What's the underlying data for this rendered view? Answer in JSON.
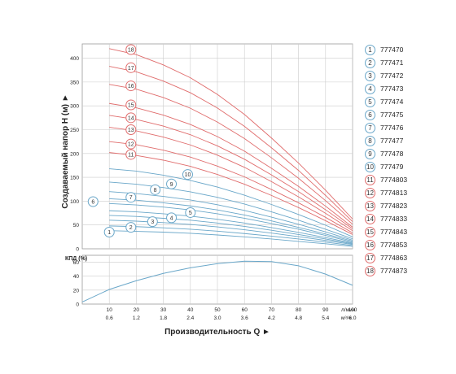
{
  "colors": {
    "blue_curve": "#6aa7c9",
    "red_curve": "#e06c6c",
    "grid": "#cccccc",
    "axis": "#222222"
  },
  "chart_data": [
    {
      "type": "line",
      "ylabel": "Создаваемый напор H (м) ►",
      "xlim": [
        0,
        100
      ],
      "ylim": [
        0,
        430
      ],
      "yticks": [
        0,
        50,
        100,
        150,
        200,
        250,
        300,
        350,
        400
      ],
      "xticks": [
        10,
        20,
        30,
        40,
        50,
        60,
        70,
        80,
        90,
        100
      ],
      "curve_x": [
        10,
        20,
        30,
        40,
        50,
        60,
        70,
        80,
        90,
        100
      ],
      "series": [
        {
          "name": "777470",
          "label": "1",
          "color": "blue",
          "values": [
            38,
            36.5,
            35,
            32.5,
            29,
            25,
            20.5,
            15.5,
            10.5,
            5
          ]
        },
        {
          "name": "777471",
          "label": "2",
          "color": "blue",
          "values": [
            48,
            46.5,
            44,
            41,
            37,
            32,
            26.5,
            20.5,
            14,
            7
          ]
        },
        {
          "name": "777472",
          "label": "3",
          "color": "blue",
          "values": [
            60,
            58,
            55,
            51,
            46,
            40,
            33,
            25.5,
            17.5,
            9
          ]
        },
        {
          "name": "777473",
          "label": "4",
          "color": "blue",
          "values": [
            70,
            68,
            64,
            60,
            54,
            47,
            39,
            30,
            20.5,
            10.5
          ]
        },
        {
          "name": "777474",
          "label": "5",
          "color": "blue",
          "values": [
            80,
            77.5,
            73.5,
            68.5,
            62,
            54,
            44.5,
            34.5,
            23.5,
            12
          ]
        },
        {
          "name": "777475",
          "label": "6",
          "color": "blue",
          "values": [
            95,
            92,
            87.5,
            81.5,
            73.5,
            64,
            53,
            41,
            28,
            14
          ]
        },
        {
          "name": "777476",
          "label": "7",
          "color": "blue",
          "values": [
            105,
            102,
            96.5,
            90,
            81.5,
            71,
            58.5,
            45,
            31,
            16
          ]
        },
        {
          "name": "777477",
          "label": "8",
          "color": "blue",
          "values": [
            120,
            116,
            110,
            102.5,
            92.5,
            80.5,
            66.5,
            51.5,
            35.5,
            18
          ]
        },
        {
          "name": "777478",
          "label": "9",
          "color": "blue",
          "values": [
            140,
            135.5,
            128.5,
            119.5,
            108,
            94,
            77.5,
            60,
            41,
            21
          ]
        },
        {
          "name": "777479",
          "label": "10",
          "color": "blue",
          "values": [
            168,
            163,
            154.5,
            143.5,
            129.5,
            112.5,
            93,
            72,
            49.5,
            25
          ]
        },
        {
          "name": "7774803",
          "label": "11",
          "color": "red",
          "values": [
            202,
            196,
            186,
            173,
            156,
            135.5,
            112,
            86.5,
            59,
            30
          ]
        },
        {
          "name": "7774813",
          "label": "12",
          "color": "red",
          "values": [
            225,
            218.5,
            207,
            192.5,
            173.5,
            151,
            124.5,
            96.5,
            66,
            33.5
          ]
        },
        {
          "name": "7774823",
          "label": "13",
          "color": "red",
          "values": [
            255,
            247.5,
            234.5,
            218,
            196.5,
            171,
            141,
            109,
            74.5,
            38
          ]
        },
        {
          "name": "7774833",
          "label": "14",
          "color": "red",
          "values": [
            280,
            271.5,
            257.5,
            239.5,
            216,
            188,
            155,
            120,
            82,
            42
          ]
        },
        {
          "name": "7774843",
          "label": "15",
          "color": "red",
          "values": [
            305,
            296,
            280.5,
            261,
            235.5,
            205,
            169,
            131,
            89.5,
            45.5
          ]
        },
        {
          "name": "7774853",
          "label": "16",
          "color": "red",
          "values": [
            345,
            335,
            317.5,
            295,
            266,
            231.5,
            191,
            148,
            101,
            51.5
          ]
        },
        {
          "name": "7774863",
          "label": "17",
          "color": "red",
          "values": [
            383,
            371.5,
            352,
            327.5,
            295.5,
            257,
            212,
            164.5,
            112,
            57
          ]
        },
        {
          "name": "7774873",
          "label": "18",
          "color": "red",
          "values": [
            420,
            407.5,
            386,
            359,
            324,
            282,
            232.5,
            180,
            123,
            62.5
          ]
        }
      ],
      "badges": [
        {
          "label": "1",
          "x": 10,
          "y": 35,
          "color": "blue"
        },
        {
          "label": "2",
          "x": 18,
          "y": 45,
          "color": "blue"
        },
        {
          "label": "3",
          "x": 26,
          "y": 57,
          "color": "blue"
        },
        {
          "label": "4",
          "x": 33,
          "y": 65,
          "color": "blue"
        },
        {
          "label": "5",
          "x": 40,
          "y": 76,
          "color": "blue"
        },
        {
          "label": "6",
          "x": 4,
          "y": 99,
          "color": "blue"
        },
        {
          "label": "7",
          "x": 18,
          "y": 108,
          "color": "blue"
        },
        {
          "label": "8",
          "x": 27,
          "y": 124,
          "color": "blue"
        },
        {
          "label": "9",
          "x": 33,
          "y": 136,
          "color": "blue"
        },
        {
          "label": "10",
          "x": 39,
          "y": 156,
          "color": "blue"
        },
        {
          "label": "11",
          "x": 18,
          "y": 198,
          "color": "red"
        },
        {
          "label": "12",
          "x": 18,
          "y": 220,
          "color": "red"
        },
        {
          "label": "13",
          "x": 18,
          "y": 250,
          "color": "red"
        },
        {
          "label": "14",
          "x": 18,
          "y": 275,
          "color": "red"
        },
        {
          "label": "15",
          "x": 18,
          "y": 302,
          "color": "red"
        },
        {
          "label": "16",
          "x": 18,
          "y": 342,
          "color": "red"
        },
        {
          "label": "17",
          "x": 18,
          "y": 380,
          "color": "red"
        },
        {
          "label": "18",
          "x": 18,
          "y": 418,
          "color": "red"
        }
      ]
    },
    {
      "type": "line",
      "ylabel": "КПД (%)",
      "xlabel": "Производительность Q ►",
      "xlim": [
        0,
        100
      ],
      "ylim": [
        0,
        70
      ],
      "yticks": [
        0,
        20,
        40,
        60
      ],
      "xticks_l": [
        "10",
        "20",
        "30",
        "40",
        "50",
        "60",
        "70",
        "80",
        "90",
        "100"
      ],
      "xticks_l_values": [
        10,
        20,
        30,
        40,
        50,
        60,
        70,
        80,
        90,
        100
      ],
      "xunit_l": "л/мин",
      "xticks_m3": [
        "0.6",
        "1.2",
        "1.8",
        "2.4",
        "3.0",
        "3.6",
        "4.2",
        "4.8",
        "5.4",
        "6.0"
      ],
      "xunit_m3": "м³/ч",
      "x": [
        0,
        10,
        20,
        30,
        40,
        50,
        60,
        70,
        80,
        90,
        100
      ],
      "values": [
        3,
        21,
        33.5,
        44,
        52,
        58,
        61.5,
        61,
        55,
        43,
        27
      ]
    }
  ]
}
